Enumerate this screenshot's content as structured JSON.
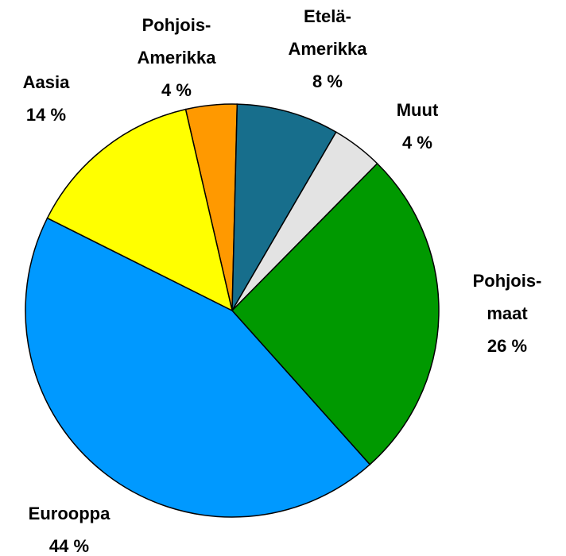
{
  "chart_data": {
    "type": "pie",
    "categories": [
      "Pohjois-Amerikka",
      "Etelä-Amerikka",
      "Muut",
      "Pohjois-maat",
      "Eurooppa",
      "Aasia"
    ],
    "values": [
      4,
      8,
      4,
      26,
      44,
      14
    ],
    "value_labels": [
      "4 %",
      "8 %",
      "4 %",
      "26 %",
      "44 %",
      "14 %"
    ],
    "colors": [
      "#ff9900",
      "#176e8c",
      "#e3e3e3",
      "#009900",
      "#0099ff",
      "#ffff00"
    ]
  }
}
